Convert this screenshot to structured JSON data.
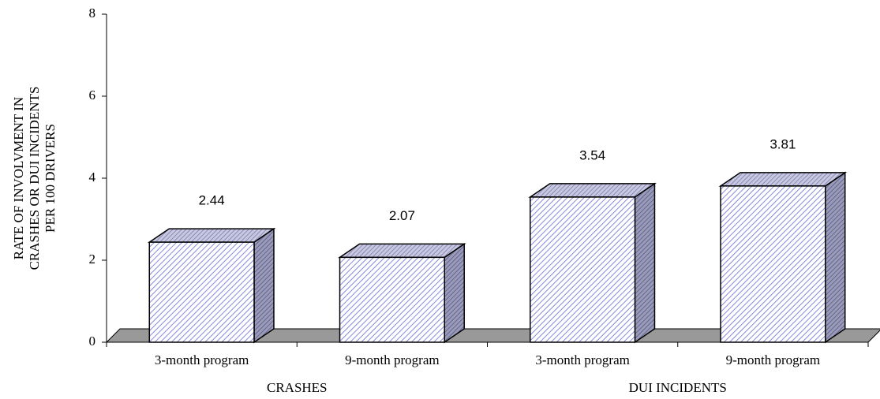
{
  "chart_data": {
    "type": "bar3d",
    "y_label": [
      "RATE OF INVOLVMENT IN",
      "CRASHES OR DUI INCIDENTS",
      "PER 100 DRIVERS"
    ],
    "categories": [
      "3-month program",
      "9-month program",
      "3-month program",
      "9-month program"
    ],
    "groups": [
      "CRASHES",
      "DUI INCIDENTS"
    ],
    "values": [
      2.44,
      2.07,
      3.54,
      3.81
    ],
    "ylim": [
      0,
      8
    ],
    "yticks": [
      0,
      2,
      4,
      6,
      8
    ]
  }
}
